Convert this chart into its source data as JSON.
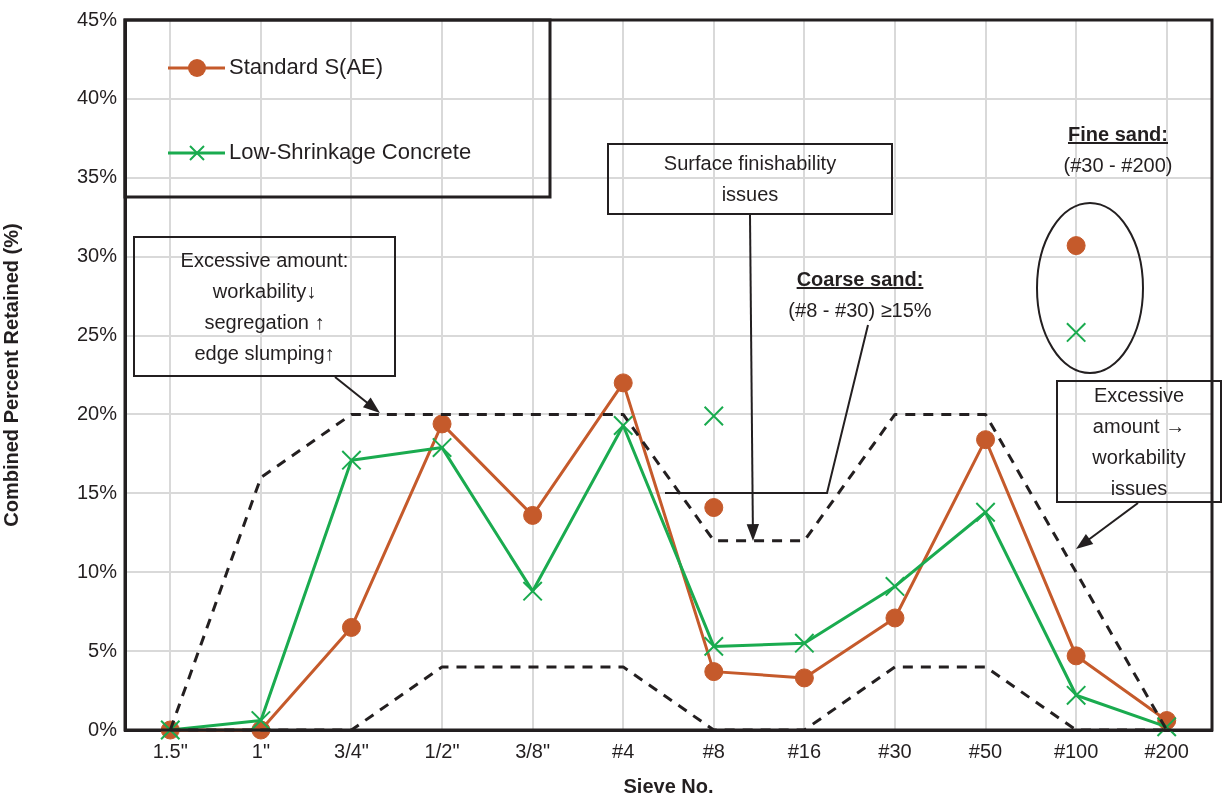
{
  "chart_data": {
    "type": "line",
    "xlabel": "Sieve No.",
    "ylabel": "Combined Percent Retained (%)",
    "categories": [
      "1.5\"",
      "1\"",
      "3/4\"",
      "1/2\"",
      "3/8\"",
      "#4",
      "#8",
      "#16",
      "#30",
      "#50",
      "#100",
      "#200"
    ],
    "series": [
      {
        "name": "Standard S(AE)",
        "color": "#c55a2b",
        "marker": "circle",
        "values": [
          0,
          0,
          6.5,
          19.4,
          13.6,
          22,
          3.7,
          3.3,
          7.1,
          18.4,
          4.7,
          0.6
        ]
      },
      {
        "name": "Low-Shrinkage Concrete",
        "color": "#1aab4f",
        "marker": "cross",
        "values": [
          0,
          0.6,
          17.1,
          17.9,
          8.8,
          19.3,
          5.3,
          5.5,
          9.1,
          13.8,
          2.2,
          0.2
        ]
      },
      {
        "color": "#231f20",
        "marker": "none",
        "line_style": "dashed",
        "values": [
          0,
          16,
          20,
          20,
          20,
          20,
          12,
          12,
          20,
          20,
          10,
          0
        ]
      },
      {
        "color": "#231f20",
        "marker": "none",
        "line_style": "dashed",
        "values": [
          0,
          0,
          0,
          4,
          4,
          4,
          0,
          0,
          4,
          4,
          0,
          0
        ]
      },
      {
        "type": "scatter",
        "color": "#c55a2b",
        "marker": "circle",
        "x": [
          "#8",
          "#100"
        ],
        "values": [
          14.1,
          30.7
        ]
      },
      {
        "type": "scatter",
        "color": "#1aab4f",
        "marker": "cross",
        "x": [
          "#8",
          "#100"
        ],
        "values": [
          19.9,
          25.2
        ]
      }
    ],
    "ylim": [
      0,
      45
    ],
    "yticks": [
      {
        "value": 0,
        "label": "0%"
      },
      {
        "value": 5,
        "label": "5%"
      },
      {
        "value": 10,
        "label": "10%"
      },
      {
        "value": 15,
        "label": "15%"
      },
      {
        "value": 20,
        "label": "20%"
      },
      {
        "value": 25,
        "label": "25%"
      },
      {
        "value": 30,
        "label": "30%"
      },
      {
        "value": 35,
        "label": "35%"
      },
      {
        "value": 40,
        "label": "40%"
      },
      {
        "value": 45,
        "label": "45%"
      }
    ],
    "grid": true,
    "legend": "top left",
    "annotations": [
      "Excessive amount:\nworkability↓\nsegregation ↑\nedge slumping↑",
      "Surface finishability\nissues",
      "Coarse sand:\n(#8 - #30) ≥15%",
      "Fine sand:\n(#30 - #200)",
      "Excessive\namount →\nworkability\nissues"
    ]
  }
}
